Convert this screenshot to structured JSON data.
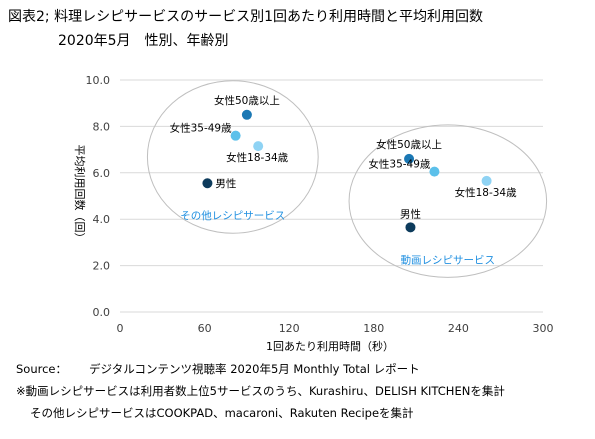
{
  "title": "図表2; 料理レシピサービスのサービス別1回あたり利用時間と平均利用回数",
  "subtitle": "2020年5月　性別、年齢別",
  "footer": {
    "source_label": "Source：",
    "source_text": "デジタルコンテンツ視聴率 2020年5月 Monthly Total レポート",
    "note1": "※動画レシピサービスは利用者数上位5サービスのうち、Kurashiru、DELISH KITCHENを集計",
    "note2": "その他レシピサービスはCOOKPAD、macaroni、Rakuten Recipeを集計"
  },
  "chart_data": {
    "type": "scatter",
    "xlabel": "1回あたり利用時間（秒）",
    "ylabel": "平均利用回数（回）",
    "xlim": [
      0,
      300
    ],
    "ylim": [
      0,
      10
    ],
    "x_ticks": [
      "0",
      "60",
      "120",
      "180",
      "240",
      "300"
    ],
    "y_ticks": [
      "0.0",
      "2.0",
      "4.0",
      "6.0",
      "8.0",
      "10.0"
    ],
    "grid": "horizontal",
    "groups": [
      {
        "name": "その他レシピサービス",
        "color": "#1f8fe0"
      },
      {
        "name": "動画レシピサービス",
        "color": "#1f8fe0"
      }
    ],
    "points": [
      {
        "label": "女性50歳以上",
        "group": "その他レシピサービス",
        "x": 90,
        "y": 8.5,
        "color": "#1b78b4"
      },
      {
        "label": "女性35-49歳",
        "group": "その他レシピサービス",
        "x": 82,
        "y": 7.6,
        "color": "#5cc0ea"
      },
      {
        "label": "女性18-34歳",
        "group": "その他レシピサービス",
        "x": 98,
        "y": 7.15,
        "color": "#8fd3f4"
      },
      {
        "label": "男性",
        "group": "その他レシピサービス",
        "x": 62,
        "y": 5.55,
        "color": "#0d3b5c"
      },
      {
        "label": "女性50歳以上",
        "group": "動画レシピサービス",
        "x": 205,
        "y": 6.6,
        "color": "#1b78b4"
      },
      {
        "label": "女性35-49歳",
        "group": "動画レシピサービス",
        "x": 223,
        "y": 6.05,
        "color": "#5cc0ea"
      },
      {
        "label": "女性18-34歳",
        "group": "動画レシピサービス",
        "x": 260,
        "y": 5.65,
        "color": "#8fd3f4"
      },
      {
        "label": "男性",
        "group": "動画レシピサービス",
        "x": 206,
        "y": 3.65,
        "color": "#0d3b5c"
      }
    ]
  }
}
